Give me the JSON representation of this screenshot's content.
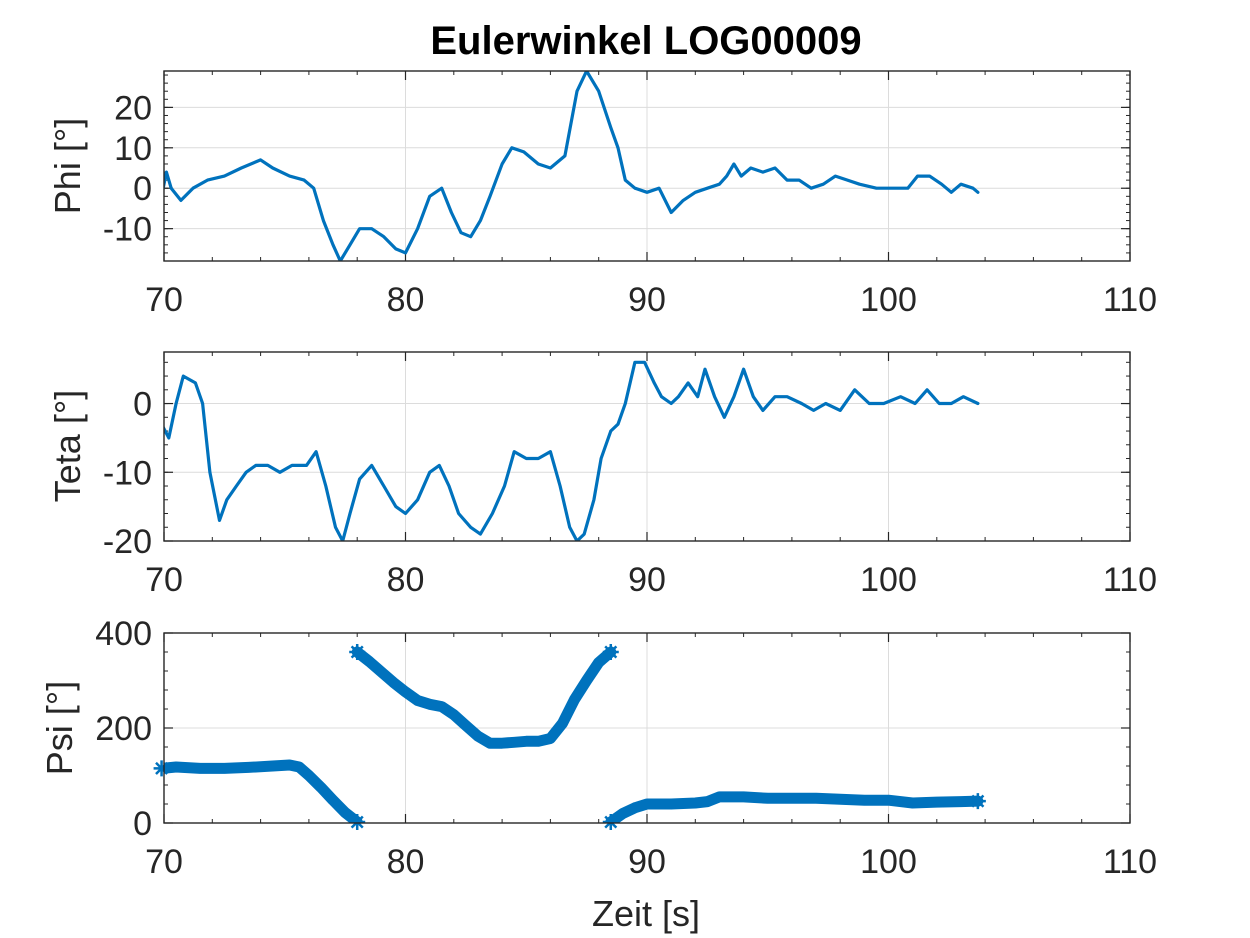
{
  "figure": {
    "title": "Eulerwinkel LOG00009",
    "xlabel": "Zeit [s]"
  },
  "style": {
    "line_color": "#0072BD",
    "grid_color": "#dcdcdc",
    "axis_color": "#262626"
  },
  "chart_data": [
    {
      "type": "line",
      "ylabel": "Phi [°]",
      "xlim": [
        70,
        110
      ],
      "ylim": [
        -18,
        29
      ],
      "xticks": [
        70,
        80,
        90,
        100,
        110
      ],
      "yticks": [
        -10,
        0,
        10,
        20
      ],
      "xticklabels": [
        "70",
        "80",
        "90",
        "100",
        "110"
      ],
      "yticklabels": [
        "-10",
        "0",
        "10",
        "20"
      ],
      "grid": true,
      "series": [
        {
          "x": [
            69.9,
            70.1,
            70.3,
            70.7,
            71.2,
            71.8,
            72.5,
            73.2,
            74.0,
            74.5,
            75.2,
            75.8,
            76.2,
            76.6,
            77.0,
            77.3,
            77.7,
            78.1,
            78.6,
            79.1,
            79.6,
            80.0,
            80.5,
            81.0,
            81.5,
            81.9,
            82.3,
            82.7,
            83.1,
            83.5,
            84.0,
            84.4,
            84.9,
            85.5,
            86.0,
            86.6,
            87.1,
            87.5,
            88.0,
            88.5,
            88.8,
            89.1,
            89.5,
            90.0,
            90.5,
            91.0,
            91.5,
            92.0,
            92.5,
            93.0,
            93.3,
            93.6,
            93.9,
            94.3,
            94.8,
            95.3,
            95.8,
            96.3,
            96.8,
            97.3,
            97.8,
            98.3,
            98.8,
            99.5,
            100.2,
            100.8,
            101.2,
            101.7,
            102.2,
            102.6,
            103.0,
            103.5,
            103.7
          ],
          "y": [
            -2,
            4,
            0,
            -3,
            0,
            2,
            3,
            5,
            7,
            5,
            3,
            2,
            0,
            -8,
            -14,
            -18,
            -14,
            -10,
            -10,
            -12,
            -15,
            -16,
            -10,
            -2,
            0,
            -6,
            -11,
            -12,
            -8,
            -2,
            6,
            10,
            9,
            6,
            5,
            8,
            24,
            29,
            24,
            15,
            10,
            2,
            0,
            -1,
            0,
            -6,
            -3,
            -1,
            0,
            1,
            3,
            6,
            3,
            5,
            4,
            5,
            2,
            2,
            0,
            1,
            3,
            2,
            1,
            0,
            0,
            0,
            3,
            3,
            1,
            -1,
            1,
            0,
            -1
          ]
        }
      ]
    },
    {
      "type": "line",
      "ylabel": "Teta [°]",
      "xlim": [
        70,
        110
      ],
      "ylim": [
        -20,
        7.5
      ],
      "xticks": [
        70,
        80,
        90,
        100,
        110
      ],
      "yticks": [
        -20,
        -10,
        0
      ],
      "xticklabels": [
        "70",
        "80",
        "90",
        "100",
        "110"
      ],
      "yticklabels": [
        "-20",
        "-10",
        "0"
      ],
      "grid": true,
      "series": [
        {
          "x": [
            69.9,
            70.2,
            70.5,
            70.8,
            71.3,
            71.6,
            71.9,
            72.3,
            72.6,
            73.0,
            73.4,
            73.8,
            74.3,
            74.8,
            75.3,
            75.9,
            76.3,
            76.7,
            77.1,
            77.4,
            77.7,
            78.1,
            78.6,
            79.1,
            79.6,
            80.0,
            80.5,
            81.0,
            81.4,
            81.8,
            82.2,
            82.7,
            83.1,
            83.6,
            84.1,
            84.5,
            85.0,
            85.5,
            86.0,
            86.4,
            86.8,
            87.1,
            87.4,
            87.8,
            88.1,
            88.5,
            88.8,
            89.1,
            89.5,
            89.9,
            90.3,
            90.6,
            91.0,
            91.3,
            91.7,
            92.1,
            92.4,
            92.8,
            93.2,
            93.6,
            94.0,
            94.4,
            94.8,
            95.3,
            95.8,
            96.4,
            96.9,
            97.4,
            98.0,
            98.6,
            99.2,
            99.8,
            100.5,
            101.1,
            101.6,
            102.1,
            102.6,
            103.1,
            103.7
          ],
          "y": [
            -3,
            -5,
            0,
            4,
            3,
            0,
            -10,
            -17,
            -14,
            -12,
            -10,
            -9,
            -9,
            -10,
            -9,
            -9,
            -7,
            -12,
            -18,
            -20,
            -16,
            -11,
            -9,
            -12,
            -15,
            -16,
            -14,
            -10,
            -9,
            -12,
            -16,
            -18,
            -19,
            -16,
            -12,
            -7,
            -8,
            -8,
            -7,
            -12,
            -18,
            -20,
            -19,
            -14,
            -8,
            -4,
            -3,
            0,
            6,
            6,
            3,
            1,
            0,
            1,
            3,
            1,
            5,
            1,
            -2,
            1,
            5,
            1,
            -1,
            1,
            1,
            0,
            -1,
            0,
            -1,
            2,
            0,
            0,
            1,
            0,
            2,
            0,
            0,
            1,
            0
          ]
        }
      ]
    },
    {
      "type": "scatter",
      "ylabel": "Psi [°]",
      "xlim": [
        70,
        110
      ],
      "ylim": [
        0,
        400
      ],
      "xticks": [
        70,
        80,
        90,
        100,
        110
      ],
      "yticks": [
        0,
        200,
        400
      ],
      "xticklabels": [
        "70",
        "80",
        "90",
        "100",
        "110"
      ],
      "yticklabels": [
        "0",
        "200",
        "400"
      ],
      "grid": true,
      "segments": [
        {
          "x": [
            69.9,
            70.5,
            71.5,
            72.5,
            73.5,
            74.5,
            75.2,
            75.6,
            76.0,
            76.5,
            77.0,
            77.5,
            78.0
          ],
          "y": [
            115,
            118,
            115,
            115,
            117,
            120,
            122,
            118,
            100,
            75,
            48,
            22,
            2
          ]
        },
        {
          "x": [
            78.0,
            78.5,
            79.0,
            79.5,
            80.0,
            80.5,
            81.0,
            81.5,
            82.0,
            82.5,
            83.0,
            83.5,
            84.0,
            84.5,
            85.0,
            85.5,
            86.0,
            86.5,
            87.0,
            87.5,
            88.0,
            88.5
          ],
          "y": [
            360,
            340,
            318,
            296,
            276,
            258,
            250,
            245,
            228,
            205,
            183,
            168,
            168,
            170,
            172,
            172,
            178,
            210,
            260,
            300,
            338,
            360
          ]
        },
        {
          "x": [
            88.5,
            89.0,
            89.5,
            90.0,
            91.0,
            92.0,
            92.5,
            93.0,
            94.0,
            95.0,
            96.0,
            97.0,
            98.0,
            99.0,
            100.0,
            101.0,
            102.0,
            103.0,
            103.7
          ],
          "y": [
            2,
            20,
            32,
            40,
            40,
            42,
            45,
            55,
            55,
            52,
            52,
            52,
            50,
            48,
            48,
            42,
            44,
            45,
            46
          ]
        }
      ]
    }
  ]
}
